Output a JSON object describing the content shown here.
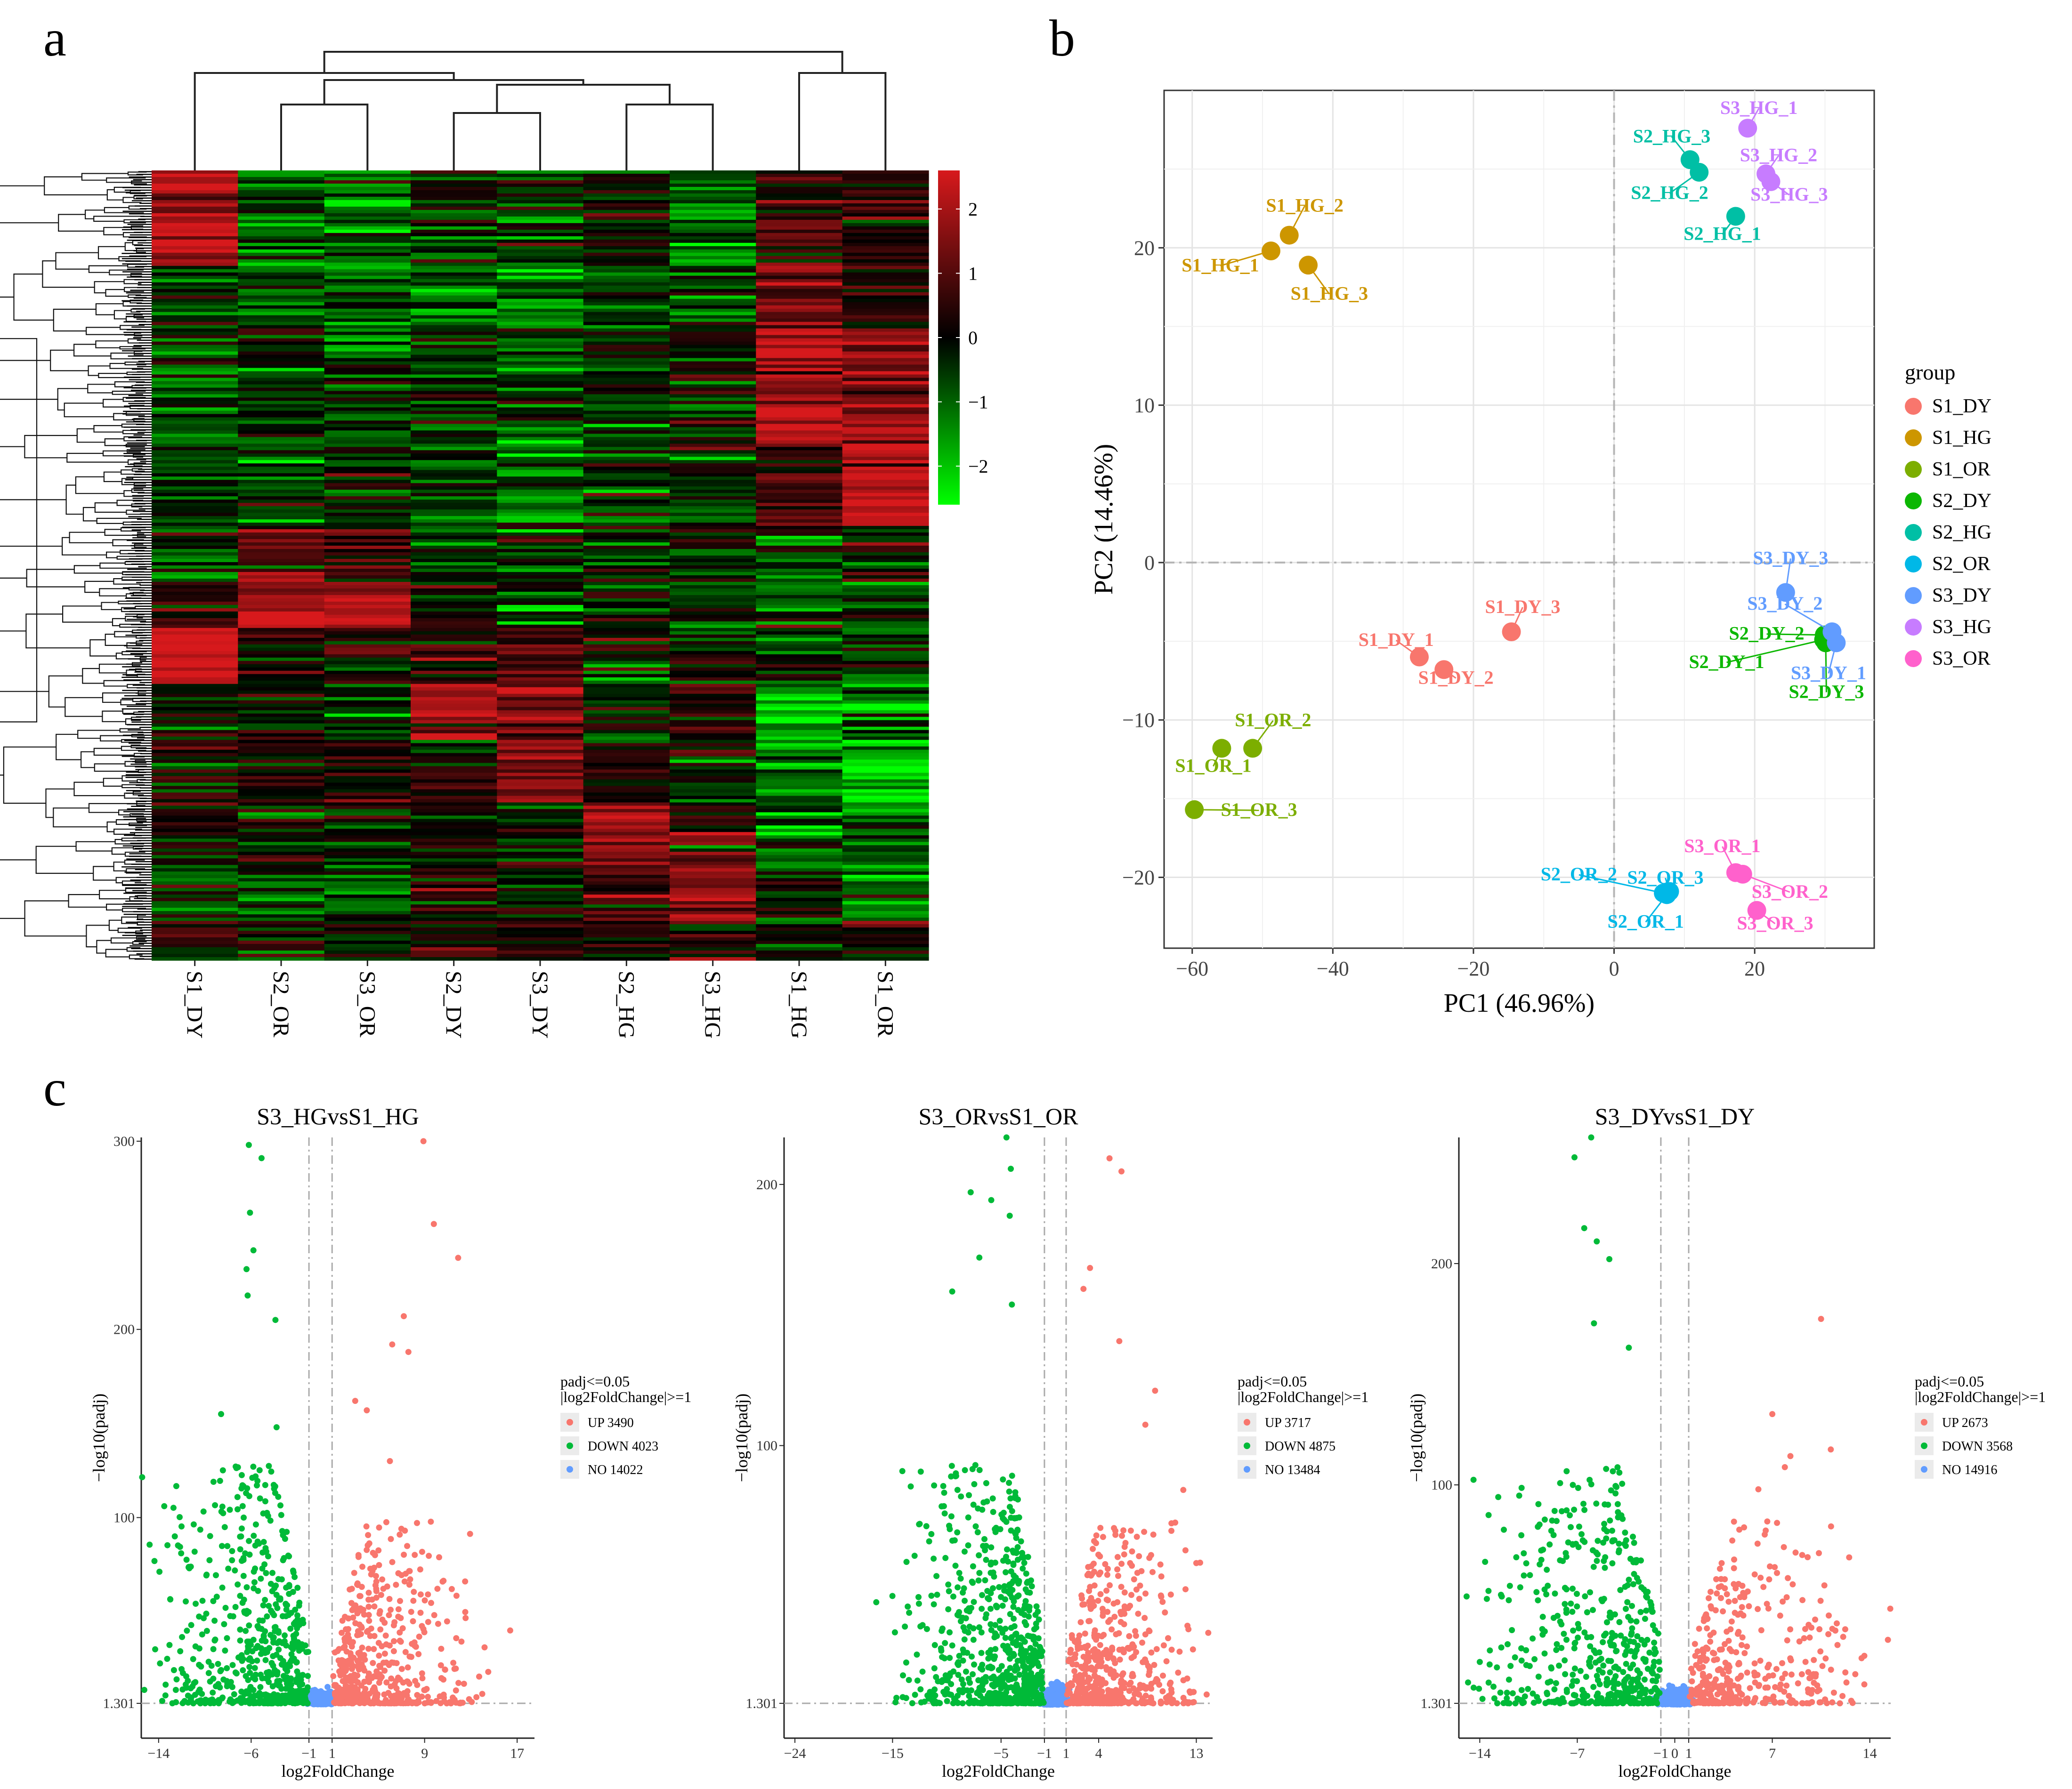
{
  "panel_labels": {
    "a": "a",
    "b": "b",
    "c": "c"
  },
  "colors": {
    "S1_DY": "#F8766D",
    "S1_HG": "#CD9600",
    "S1_OR": "#7CAE00",
    "S2_DY": "#0CB702",
    "S2_HG": "#00BFA5",
    "S2_OR": "#00B8E7",
    "S3_DY": "#619CFF",
    "S3_HG": "#C77CFF",
    "S3_OR": "#FF61CC",
    "up": "#F8766D",
    "down": "#00BA38",
    "no": "#619CFF",
    "heat_high": "#D7191C",
    "heat_mid": "#000000",
    "heat_low": "#00FF00"
  },
  "chart_data": [
    {
      "type": "heatmap",
      "panel": "a",
      "columns": [
        "S1_DY",
        "S2_OR",
        "S3_OR",
        "S2_DY",
        "S3_DY",
        "S2_HG",
        "S3_HG",
        "S1_HG",
        "S1_OR"
      ],
      "colorbar": {
        "ticks": [
          2,
          1,
          0,
          -1,
          -2
        ],
        "tick_labels": [
          "2",
          "1",
          "0",
          "−1",
          "−2"
        ],
        "range": [
          -2.6,
          2.6
        ]
      },
      "column_dendrogram": "((S1_DY,((S2_OR,S3_OR),((S2_DY,S3_DY),(S2_HG,S3_HG)))),(S1_HG,S1_OR))",
      "row_clusters": [
        {
          "from": 0.0,
          "to": 0.12,
          "values": [
            2.0,
            -1.0,
            -1.2,
            -0.3,
            -0.5,
            -0.2,
            -0.9,
            0.6,
            0.3
          ]
        },
        {
          "from": 0.12,
          "to": 0.2,
          "values": [
            -0.2,
            -0.6,
            -0.6,
            -0.9,
            -1.0,
            -0.6,
            -0.8,
            1.4,
            0.4
          ]
        },
        {
          "from": 0.2,
          "to": 0.35,
          "values": [
            -0.7,
            -0.5,
            -0.6,
            -0.6,
            -0.7,
            -0.5,
            -0.4,
            2.2,
            1.7
          ]
        },
        {
          "from": 0.35,
          "to": 0.45,
          "values": [
            -0.6,
            -0.6,
            -0.5,
            -0.9,
            -1.0,
            -0.7,
            -0.4,
            0.9,
            2.2
          ]
        },
        {
          "from": 0.45,
          "to": 0.52,
          "values": [
            -0.5,
            0.9,
            0.7,
            -0.4,
            -0.6,
            -0.4,
            -0.3,
            -0.6,
            0.3
          ]
        },
        {
          "from": 0.52,
          "to": 0.58,
          "values": [
            0.2,
            2.0,
            2.2,
            0.1,
            -0.6,
            -0.3,
            -0.6,
            -0.5,
            -0.8
          ]
        },
        {
          "from": 0.58,
          "to": 0.65,
          "values": [
            2.2,
            0.3,
            0.2,
            0.4,
            0.7,
            -0.2,
            -0.4,
            -0.6,
            -0.6
          ]
        },
        {
          "from": 0.65,
          "to": 0.72,
          "values": [
            -0.2,
            0.2,
            -0.5,
            2.0,
            1.4,
            -0.3,
            0.4,
            -1.8,
            -1.2
          ]
        },
        {
          "from": 0.72,
          "to": 0.8,
          "values": [
            0.2,
            0.3,
            0.5,
            0.4,
            1.4,
            0.2,
            -0.2,
            -1.2,
            -2.0
          ]
        },
        {
          "from": 0.8,
          "to": 0.88,
          "values": [
            0.2,
            0.1,
            -0.2,
            0.2,
            0.1,
            2.0,
            0.8,
            -1.0,
            -1.2
          ]
        },
        {
          "from": 0.88,
          "to": 0.95,
          "values": [
            -0.7,
            -0.7,
            -0.9,
            0.4,
            -0.2,
            1.0,
            2.0,
            -0.3,
            -0.9
          ]
        },
        {
          "from": 0.95,
          "to": 1.0,
          "values": [
            0.6,
            0.2,
            -0.4,
            0.2,
            0.4,
            0.1,
            0.2,
            -0.2,
            0.3
          ]
        }
      ]
    },
    {
      "type": "scatter",
      "panel": "b",
      "xlabel": "PC1 (46.96%)",
      "ylabel": "PC2 (14.46%)",
      "xlim": [
        -64,
        37
      ],
      "ylim": [
        -24.5,
        30.0
      ],
      "xticks": [
        -60,
        -40,
        -20,
        0,
        20
      ],
      "xtick_labels": [
        "−60",
        "−40",
        "−20",
        "0",
        "20"
      ],
      "yticks": [
        -20,
        -10,
        0,
        10,
        20
      ],
      "ytick_labels": [
        "−20",
        "−10",
        "0",
        "10",
        "20"
      ],
      "legend": {
        "title": "group",
        "position": "right",
        "entries": [
          "S1_DY",
          "S1_HG",
          "S1_OR",
          "S2_DY",
          "S2_HG",
          "S2_OR",
          "S3_DY",
          "S3_HG",
          "S3_OR"
        ]
      },
      "points": [
        {
          "label": "S1_DY_1",
          "group": "S1_DY",
          "x": -27.7,
          "y": -6.0,
          "lx": -31,
          "ly": -5.3
        },
        {
          "label": "S1_DY_2",
          "group": "S1_DY",
          "x": -24.2,
          "y": -6.8,
          "lx": -22.5,
          "ly": -7.7
        },
        {
          "label": "S1_DY_3",
          "group": "S1_DY",
          "x": -14.6,
          "y": -4.4,
          "lx": -13,
          "ly": -3.2
        },
        {
          "label": "S1_HG_1",
          "group": "S1_HG",
          "x": -48.8,
          "y": 19.8,
          "lx": -56,
          "ly": 18.5
        },
        {
          "label": "S1_HG_2",
          "group": "S1_HG",
          "x": -46.2,
          "y": 20.8,
          "lx": -44,
          "ly": 22.3
        },
        {
          "label": "S1_HG_3",
          "group": "S1_HG",
          "x": -43.5,
          "y": 18.9,
          "lx": -40.5,
          "ly": 16.7
        },
        {
          "label": "S1_OR_1",
          "group": "S1_OR",
          "x": -55.8,
          "y": -11.8,
          "lx": -57,
          "ly": -13.3
        },
        {
          "label": "S1_OR_2",
          "group": "S1_OR",
          "x": -51.4,
          "y": -11.8,
          "lx": -48.5,
          "ly": -10.4
        },
        {
          "label": "S1_OR_3",
          "group": "S1_OR",
          "x": -59.7,
          "y": -15.7,
          "lx": -50.5,
          "ly": -16.1
        },
        {
          "label": "S2_DY_1",
          "group": "S2_DY",
          "x": 29.8,
          "y": -4.9,
          "lx": 16,
          "ly": -6.7
        },
        {
          "label": "S2_DY_2",
          "group": "S2_DY",
          "x": 29.9,
          "y": -4.6,
          "lx": 21.7,
          "ly": -4.9
        },
        {
          "label": "S2_DY_3",
          "group": "S2_DY",
          "x": 30.1,
          "y": -5.1,
          "lx": 30.2,
          "ly": -8.6
        },
        {
          "label": "S2_HG_1",
          "group": "S2_HG",
          "x": 17.3,
          "y": 22.0,
          "lx": 15.4,
          "ly": 20.5
        },
        {
          "label": "S2_HG_2",
          "group": "S2_HG",
          "x": 12.1,
          "y": 24.8,
          "lx": 7.9,
          "ly": 23.1
        },
        {
          "label": "S2_HG_3",
          "group": "S2_HG",
          "x": 10.8,
          "y": 25.6,
          "lx": 8.2,
          "ly": 26.7
        },
        {
          "label": "S2_OR_1",
          "group": "S2_OR",
          "x": 7.5,
          "y": -21.1,
          "lx": 4.5,
          "ly": -23.2
        },
        {
          "label": "S2_OR_2",
          "group": "S2_OR",
          "x": 7.0,
          "y": -21.0,
          "lx": -5,
          "ly": -20.2
        },
        {
          "label": "S2_OR_3",
          "group": "S2_OR",
          "x": 7.9,
          "y": -20.9,
          "lx": 7.3,
          "ly": -20.4
        },
        {
          "label": "S3_DY_1",
          "group": "S3_DY",
          "x": 31.6,
          "y": -5.1,
          "lx": 30.5,
          "ly": -7.4
        },
        {
          "label": "S3_DY_2",
          "group": "S3_DY",
          "x": 31.0,
          "y": -4.4,
          "lx": 24.3,
          "ly": -3.0
        },
        {
          "label": "S3_DY_3",
          "group": "S3_DY",
          "x": 24.4,
          "y": -1.9,
          "lx": 25.1,
          "ly": -0.1
        },
        {
          "label": "S3_HG_1",
          "group": "S3_HG",
          "x": 19.0,
          "y": 27.6,
          "lx": 20.6,
          "ly": 28.5
        },
        {
          "label": "S3_HG_2",
          "group": "S3_HG",
          "x": 21.6,
          "y": 24.7,
          "lx": 23.4,
          "ly": 25.5
        },
        {
          "label": "S3_HG_3",
          "group": "S3_HG",
          "x": 22.3,
          "y": 24.2,
          "lx": 24.9,
          "ly": 23.0
        },
        {
          "label": "S3_OR_1",
          "group": "S3_OR",
          "x": 17.3,
          "y": -19.7,
          "lx": 15.4,
          "ly": -18.4
        },
        {
          "label": "S3_OR_2",
          "group": "S3_OR",
          "x": 18.3,
          "y": -19.8,
          "lx": 25.0,
          "ly": -21.3
        },
        {
          "label": "S3_OR_3",
          "group": "S3_OR",
          "x": 20.3,
          "y": -22.1,
          "lx": 22.9,
          "ly": -23.3
        }
      ]
    },
    {
      "type": "scatter",
      "panel": "c",
      "subtype": "volcano",
      "title": "S3_HGvsS1_HG",
      "xlabel": "log2FoldChange",
      "ylabel": "−log10(padj)",
      "xlim": [
        -15.5,
        18.5
      ],
      "ylim": [
        0,
        302
      ],
      "xticks": [
        -14,
        -6,
        -1,
        1,
        9,
        17
      ],
      "xtick_labels": [
        "−14",
        "−6",
        "−1",
        "1",
        "9",
        "17"
      ],
      "yticks": [
        1.301,
        100,
        200,
        300
      ],
      "ytick_labels": [
        "1.301",
        "100",
        "200",
        "300"
      ],
      "threshold": {
        "padj": 1.301,
        "log2fc": [
          -1,
          1
        ]
      },
      "legend": {
        "title_line1": "padj<=0.05",
        "title_line2": "|log2FoldChange|>=1",
        "entries": [
          {
            "key": "up",
            "label": "UP 3490"
          },
          {
            "key": "down",
            "label": "DOWN 4023"
          },
          {
            "key": "no",
            "label": "NO 14022"
          }
        ]
      },
      "counts": {
        "up": 3490,
        "down": 4023,
        "no": 14022
      },
      "notable_points": [
        [
          -6.2,
          298
        ],
        [
          -5.1,
          291
        ],
        [
          -6.1,
          262
        ],
        [
          -5.8,
          242
        ],
        [
          -6.4,
          232
        ],
        [
          -6.3,
          218
        ],
        [
          -3.9,
          205
        ],
        [
          -8.6,
          155
        ],
        [
          -3.8,
          148
        ],
        [
          -12.6,
          90
        ],
        [
          -14.3,
          30
        ],
        [
          8.9,
          300
        ],
        [
          9.8,
          256
        ],
        [
          11.9,
          238
        ],
        [
          7.2,
          207
        ],
        [
          6.2,
          192
        ],
        [
          7.6,
          188
        ],
        [
          3.0,
          162
        ],
        [
          4.0,
          157
        ],
        [
          6.0,
          130
        ],
        [
          14.5,
          18
        ],
        [
          16.4,
          40
        ]
      ]
    },
    {
      "type": "scatter",
      "panel": "c",
      "subtype": "volcano",
      "title": "S3_ORvsS1_OR",
      "xlabel": "log2FoldChange",
      "ylabel": "−log10(padj)",
      "xlim": [
        -25,
        14.5
      ],
      "ylim": [
        0,
        218
      ],
      "xticks": [
        -24,
        -15,
        -5,
        -1,
        1,
        4,
        13
      ],
      "xtick_labels": [
        "−24",
        "−15",
        "−5",
        "−1",
        "1",
        "4",
        "13"
      ],
      "yticks": [
        1.301,
        100,
        200
      ],
      "ytick_labels": [
        "1.301",
        "100",
        "200"
      ],
      "threshold": {
        "padj": 1.301,
        "log2fc": [
          -1,
          1
        ]
      },
      "legend": {
        "title_line1": "padj<=0.05",
        "title_line2": "|log2FoldChange|>=1",
        "entries": [
          {
            "key": "up",
            "label": "UP 3717"
          },
          {
            "key": "down",
            "label": "DOWN 4875"
          },
          {
            "key": "no",
            "label": "NO 13484"
          }
        ]
      },
      "counts": {
        "up": 3717,
        "down": 4875,
        "no": 13484
      },
      "notable_points": [
        [
          -4.5,
          218
        ],
        [
          -4.1,
          206
        ],
        [
          -7.8,
          197
        ],
        [
          -5.9,
          194
        ],
        [
          -4.2,
          188
        ],
        [
          -7.0,
          172
        ],
        [
          -9.5,
          159
        ],
        [
          -4.0,
          154
        ],
        [
          -16.5,
          40
        ],
        [
          -12.5,
          70
        ],
        [
          5.0,
          210
        ],
        [
          6.1,
          205
        ],
        [
          3.2,
          168
        ],
        [
          2.6,
          160
        ],
        [
          5.9,
          140
        ],
        [
          9.2,
          121
        ],
        [
          8.3,
          108
        ],
        [
          11.8,
          83
        ],
        [
          13.0,
          55
        ]
      ]
    },
    {
      "type": "scatter",
      "panel": "c",
      "subtype": "volcano",
      "title": "S3_DYvsS1_DY",
      "xlabel": "log2FoldChange",
      "ylabel": "−log10(padj)",
      "xlim": [
        -15.5,
        15.5
      ],
      "ylim": [
        0,
        257
      ],
      "xticks": [
        -14,
        -7,
        -1,
        0,
        1,
        7,
        14
      ],
      "xtick_labels": [
        "−14",
        "−7",
        "−1",
        "0",
        "1",
        "7",
        "14"
      ],
      "yticks": [
        1.301,
        100,
        200
      ],
      "ytick_labels": [
        "1.301",
        "100",
        "200"
      ],
      "threshold": {
        "padj": 1.301,
        "log2fc": [
          -1,
          1
        ]
      },
      "legend": {
        "title_line1": "padj<=0.05",
        "title_line2": "|log2FoldChange|>=1",
        "entries": [
          {
            "key": "up",
            "label": "UP 2673"
          },
          {
            "key": "down",
            "label": "DOWN 3568"
          },
          {
            "key": "no",
            "label": "NO 14916"
          }
        ]
      },
      "counts": {
        "up": 2673,
        "down": 3568,
        "no": 14916
      },
      "notable_points": [
        [
          -6.0,
          257
        ],
        [
          -7.2,
          248
        ],
        [
          -6.5,
          216
        ],
        [
          -5.6,
          210
        ],
        [
          -4.7,
          202
        ],
        [
          -5.8,
          173
        ],
        [
          -3.3,
          162
        ],
        [
          -12.0,
          28
        ],
        [
          -14.0,
          20
        ],
        [
          10.5,
          175
        ],
        [
          7.0,
          132
        ],
        [
          8.3,
          113
        ],
        [
          7.9,
          108
        ],
        [
          11.2,
          116
        ],
        [
          6.0,
          98
        ],
        [
          15.3,
          30
        ]
      ]
    }
  ]
}
